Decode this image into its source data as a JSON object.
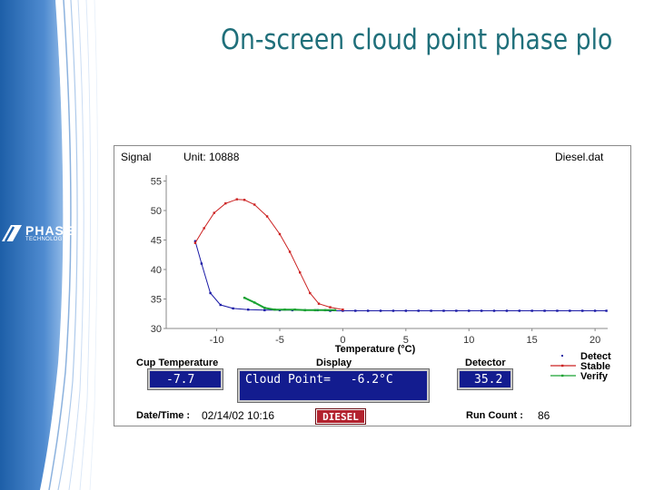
{
  "slide": {
    "title": "On-screen cloud point phase plo"
  },
  "logo": {
    "word": "PHASE",
    "sub": "TECHNOLOGY"
  },
  "panel": {
    "signal_label": "Signal",
    "unit_label": "Unit: 10888",
    "file_name": "Diesel.dat",
    "cup_temp_label": "Cup Temperature",
    "cup_temp_value": "-7.7",
    "display_label": "Display",
    "display_text": "Cloud Point=",
    "display_value": "-6.2°C",
    "detector_label": "Detector",
    "detector_value": "35.2",
    "datetime_label": "Date/Time :",
    "datetime_value": "02/14/02 10:16",
    "sample_badge": "DIESEL",
    "run_count_label": "Run Count :",
    "run_count_value": "86"
  },
  "chart_data": {
    "type": "line",
    "xlabel": "Temperature (°C)",
    "ylabel": "",
    "xlim": [
      -14,
      21
    ],
    "ylim": [
      30,
      56
    ],
    "xticks": [
      -10,
      -5,
      0,
      5,
      10,
      15,
      20
    ],
    "yticks": [
      30,
      35,
      40,
      45,
      50,
      55
    ],
    "legend_position": "bottom-right",
    "series": [
      {
        "name": "Detect",
        "color": "#1a1aa6",
        "points": [
          [
            -11.7,
            44.8
          ],
          [
            -11.2,
            41
          ],
          [
            -10.5,
            36
          ],
          [
            -9.7,
            34
          ],
          [
            -8.7,
            33.4
          ],
          [
            -7.5,
            33.2
          ],
          [
            -6.2,
            33.1
          ],
          [
            -5,
            33.1
          ],
          [
            -4,
            33.1
          ],
          [
            -3,
            33.1
          ],
          [
            -2,
            33.1
          ],
          [
            -1,
            33
          ],
          [
            0,
            33
          ],
          [
            1,
            33
          ],
          [
            2,
            33
          ],
          [
            3,
            33
          ],
          [
            4,
            33
          ],
          [
            5,
            33
          ],
          [
            6,
            33
          ],
          [
            7,
            33
          ],
          [
            8,
            33
          ],
          [
            9,
            33
          ],
          [
            10,
            33
          ],
          [
            11,
            33
          ],
          [
            12,
            33
          ],
          [
            13,
            33
          ],
          [
            14,
            33
          ],
          [
            15,
            33
          ],
          [
            16,
            33
          ],
          [
            17,
            33
          ],
          [
            18,
            33
          ],
          [
            19,
            33
          ],
          [
            20,
            33
          ],
          [
            20.9,
            33
          ]
        ]
      },
      {
        "name": "Stable",
        "color": "#cc2222",
        "points": [
          [
            -11.7,
            44.5
          ],
          [
            -11,
            47
          ],
          [
            -10.2,
            49.6
          ],
          [
            -9.3,
            51.2
          ],
          [
            -8.4,
            51.9
          ],
          [
            -7.8,
            51.8
          ],
          [
            -7,
            51
          ],
          [
            -6,
            49
          ],
          [
            -5,
            46
          ],
          [
            -4.2,
            43
          ],
          [
            -3.4,
            39.5
          ],
          [
            -2.6,
            36
          ],
          [
            -1.9,
            34.2
          ],
          [
            -1,
            33.6
          ],
          [
            0,
            33.2
          ]
        ]
      },
      {
        "name": "Verify",
        "color": "#19a232",
        "points": [
          [
            -7.8,
            35.2
          ],
          [
            -7,
            34.4
          ],
          [
            -6.2,
            33.5
          ],
          [
            -5.4,
            33.2
          ],
          [
            -4.6,
            33.2
          ],
          [
            -3.8,
            33.2
          ],
          [
            -3,
            33.1
          ],
          [
            -2.2,
            33.1
          ],
          [
            -1.4,
            33.1
          ],
          [
            -0.6,
            33.1
          ]
        ]
      }
    ]
  }
}
